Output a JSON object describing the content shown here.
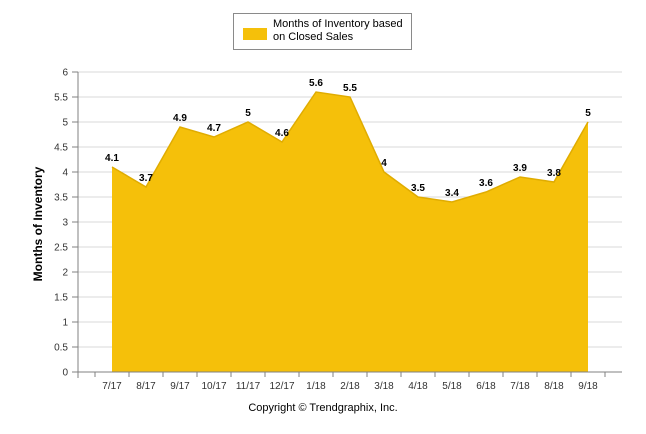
{
  "chart_data": {
    "type": "area",
    "title": "",
    "xlabel": "",
    "ylabel": "Months of Inventory",
    "ylim": [
      0,
      6
    ],
    "ytick_step": 0.5,
    "categories": [
      "7/17",
      "8/17",
      "9/17",
      "10/17",
      "11/17",
      "12/17",
      "1/18",
      "2/18",
      "3/18",
      "4/18",
      "5/18",
      "6/18",
      "7/18",
      "8/18",
      "9/18"
    ],
    "series": [
      {
        "name": "Months of Inventory based on Closed Sales",
        "values": [
          4.1,
          3.7,
          4.9,
          4.7,
          5,
          4.6,
          5.6,
          5.5,
          4,
          3.5,
          3.4,
          3.6,
          3.9,
          3.8,
          5
        ],
        "color": "#f5c00a"
      }
    ],
    "legend": {
      "position": "top-center",
      "label": "Months of Inventory based on Closed Sales"
    },
    "grid": true,
    "data_labels": true
  },
  "footer": {
    "copyright": "Copyright © Trendgraphix, Inc."
  },
  "colors": {
    "area": "#f5c00a",
    "grid": "#d9d9d9",
    "axis": "#808080"
  }
}
